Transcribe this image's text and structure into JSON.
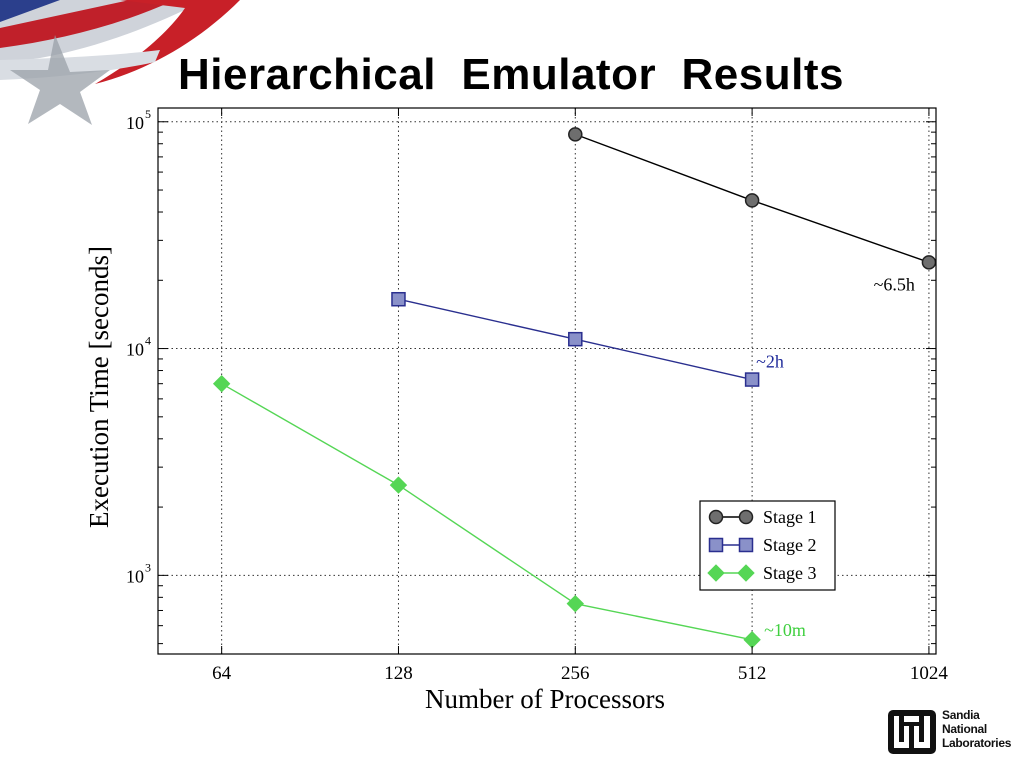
{
  "slide": {
    "title": "Hierarchical  Emulator  Results",
    "logo_lines": [
      "Sandia",
      "National",
      "Laboratories"
    ]
  },
  "colors": {
    "stage1": "#6e6e6e",
    "stage2": "#2a2f8f",
    "stage3": "#55d655",
    "stage2_label": "#1f2a9a",
    "stage3_label": "#3fcf3f"
  },
  "chart_data": {
    "type": "line",
    "title": "",
    "xlabel": "Number of Processors",
    "ylabel": "Execution Time [seconds]",
    "x_scale": "log2",
    "y_scale": "log10",
    "categories": [
      64,
      128,
      256,
      512,
      1024
    ],
    "x_tick_labels": [
      "64",
      "128",
      "256",
      "512",
      "1024"
    ],
    "y_tick_values": [
      1000,
      10000,
      100000
    ],
    "y_tick_base": "10",
    "y_tick_exponents": [
      "3",
      "4",
      "5"
    ],
    "ylim": [
      450,
      115000
    ],
    "grid": true,
    "legend_placement": "bottom-right",
    "series": [
      {
        "name": "Stage 1",
        "marker": "circle",
        "x": [
          256,
          512,
          1024
        ],
        "values": [
          88000,
          45000,
          24000
        ]
      },
      {
        "name": "Stage 2",
        "marker": "square",
        "x": [
          128,
          256,
          512
        ],
        "values": [
          16500,
          11000,
          7300
        ]
      },
      {
        "name": "Stage 3",
        "marker": "diamond",
        "x": [
          64,
          128,
          256,
          512
        ],
        "values": [
          7000,
          2500,
          750,
          520
        ]
      }
    ],
    "annotations": [
      {
        "text": "~6.5h",
        "series": "Stage 1"
      },
      {
        "text": "~2h",
        "series": "Stage 2"
      },
      {
        "text": "~10m",
        "series": "Stage 3"
      }
    ]
  }
}
